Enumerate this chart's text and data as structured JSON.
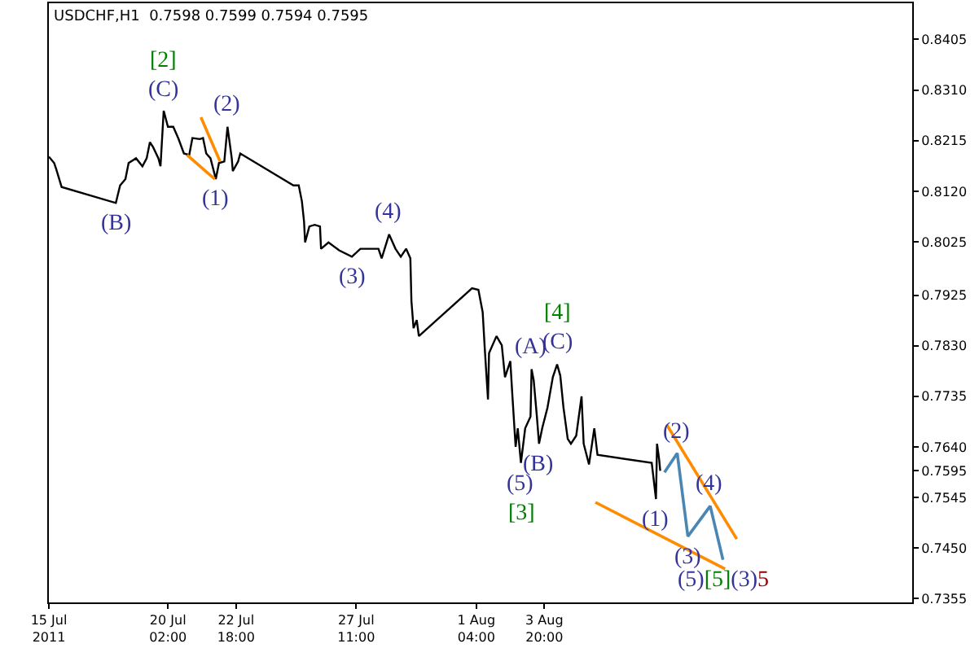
{
  "chart_data": {
    "type": "line",
    "title": "USDCHF,H1  0.7598 0.7599 0.7594 0.7595",
    "series": [
      {
        "color": "#000000",
        "x": [
          "2011-07-15T10:00",
          "2011-07-15T15:00",
          "2011-07-15T17:00",
          "2011-07-15T22:00",
          "2011-07-18T01:00",
          "2011-07-18T05:00",
          "2011-07-18T10:00",
          "2011-07-18T13:00",
          "2011-07-18T20:00",
          "2011-07-19T02:00",
          "2011-07-19T06:00",
          "2011-07-19T09:00",
          "2011-07-19T12:00",
          "2011-07-19T17:00",
          "2011-07-19T19:00",
          "2011-07-19T22:00",
          "2011-07-20T02:00",
          "2011-07-20T07:00",
          "2011-07-20T12:00",
          "2011-07-20T17:00",
          "2011-07-20T22:00",
          "2011-07-21T01:00",
          "2011-07-21T08:00",
          "2011-07-21T11:00",
          "2011-07-21T14:00",
          "2011-07-21T18:00",
          "2011-07-21T23:00",
          "2011-07-22T02:00",
          "2011-07-22T07:00",
          "2011-07-22T10:00",
          "2011-07-22T14:00",
          "2011-07-22T15:00",
          "2011-07-22T20:00",
          "2011-07-22T22:00",
          "2011-07-25T00:00",
          "2011-07-25T05:00",
          "2011-07-25T08:00",
          "2011-07-25T10:00",
          "2011-07-25T11:00",
          "2011-07-25T15:00",
          "2011-07-25T20:00",
          "2011-07-26T01:00",
          "2011-07-26T02:00",
          "2011-07-26T09:00",
          "2011-07-26T19:00",
          "2011-07-27T07:00",
          "2011-07-27T15:00",
          "2011-07-27T22:00",
          "2011-07-28T08:00",
          "2011-07-28T11:00",
          "2011-07-28T18:00",
          "2011-07-29T00:00",
          "2011-07-29T05:00",
          "2011-07-29T10:00",
          "2011-07-29T14:00",
          "2011-07-29T15:00",
          "2011-07-29T17:00",
          "2011-07-29T20:00",
          "2011-07-29T22:00",
          "2011-08-01T00:00",
          "2011-08-01T06:00",
          "2011-08-01T10:00",
          "2011-08-01T12:00",
          "2011-08-01T15:00",
          "2011-08-01T16:00",
          "2011-08-01T23:00",
          "2011-08-02T04:00",
          "2011-08-02T07:00",
          "2011-08-02T12:00",
          "2011-08-02T14:00",
          "2011-08-02T17:00",
          "2011-08-02T19:00",
          "2011-08-02T22:00",
          "2011-08-03T02:00",
          "2011-08-03T07:00",
          "2011-08-03T08:00",
          "2011-08-03T10:00",
          "2011-08-03T13:00",
          "2011-08-03T15:00",
          "2011-08-03T18:00",
          "2011-08-03T23:00",
          "2011-08-04T04:00",
          "2011-08-04T08:00",
          "2011-08-04T11:00",
          "2011-08-04T14:00",
          "2011-08-04T18:00",
          "2011-08-04T21:00",
          "2011-08-05T02:00",
          "2011-08-05T07:00",
          "2011-08-05T09:00",
          "2011-08-05T14:00",
          "2011-08-05T19:00",
          "2011-08-05T22:00",
          "2011-08-08T01:00",
          "2011-08-08T05:00",
          "2011-08-08T06:00",
          "2011-08-08T08:00",
          "2011-08-08T09:00"
        ],
        "values": [
          0.8185,
          0.8173,
          0.8161,
          0.8128,
          0.8098,
          0.8131,
          0.8143,
          0.8173,
          0.8182,
          0.8167,
          0.8182,
          0.8212,
          0.8203,
          0.8182,
          0.8167,
          0.8271,
          0.8241,
          0.8241,
          0.8218,
          0.8191,
          0.8188,
          0.822,
          0.8218,
          0.822,
          0.8191,
          0.8182,
          0.8143,
          0.8173,
          0.8176,
          0.8241,
          0.8182,
          0.8158,
          0.8176,
          0.8191,
          0.8131,
          0.8131,
          0.8101,
          0.8063,
          0.8024,
          0.8054,
          0.8057,
          0.8054,
          0.8012,
          0.8024,
          0.8009,
          0.7997,
          0.8012,
          0.8012,
          0.8012,
          0.7994,
          0.8039,
          0.8012,
          0.7997,
          0.8012,
          0.7994,
          0.7914,
          0.7863,
          0.7878,
          0.7848,
          0.7938,
          0.7935,
          0.7893,
          0.7824,
          0.7729,
          0.7816,
          0.7848,
          0.7831,
          0.7771,
          0.7801,
          0.7735,
          0.764,
          0.7675,
          0.761,
          0.7675,
          0.7697,
          0.7786,
          0.7765,
          0.7697,
          0.7646,
          0.7675,
          0.7714,
          0.7771,
          0.7795,
          0.7774,
          0.7714,
          0.7655,
          0.7646,
          0.7661,
          0.7735,
          0.7646,
          0.7607,
          0.7675,
          0.7625,
          0.761,
          0.7542,
          0.7646,
          0.7616,
          0.7595
        ]
      },
      {
        "color": "#ff8c00",
        "x": [
          "2011-07-21T09:00",
          "2011-07-22T03:00"
        ],
        "values": [
          0.8259,
          0.8176
        ]
      },
      {
        "color": "#ff8c00",
        "x": [
          "2011-07-20T20:00",
          "2011-07-21T22:00"
        ],
        "values": [
          0.8188,
          0.8143
        ]
      },
      {
        "color": "#ff8c00",
        "x": [
          "2011-08-08T15:00",
          "2011-08-11T09:00"
        ],
        "values": [
          0.7682,
          0.7467
        ]
      },
      {
        "color": "#ff8c00",
        "x": [
          "2011-08-05T20:00",
          "2011-08-10T22:00"
        ],
        "values": [
          0.7536,
          0.7411
        ]
      },
      {
        "color": "#4a86b4",
        "x": [
          "2011-08-08T13:00",
          "2011-08-09T01:00",
          "2011-08-09T11:00",
          "2011-08-10T08:00",
          "2011-08-10T20:00"
        ],
        "values": [
          0.7592,
          0.7628,
          0.7472,
          0.7529,
          0.7428
        ]
      }
    ],
    "xlim": [
      "2011-07-15T10:00",
      "2011-08-18T06:00"
    ],
    "ylim": [
      0.7348,
      0.8473
    ],
    "xticks": [
      {
        "value": "2011-07-15T10:00",
        "label": "15 Jul 2011"
      },
      {
        "value": "2011-07-20T02:00",
        "label": "20 Jul 02:00"
      },
      {
        "value": "2011-07-22T18:00",
        "label": "22 Jul 18:00"
      },
      {
        "value": "2011-07-27T11:00",
        "label": "27 Jul 11:00"
      },
      {
        "value": "2011-08-01T04:00",
        "label": "1 Aug 04:00"
      },
      {
        "value": "2011-08-03T20:00",
        "label": "3 Aug 20:00"
      }
    ],
    "yticks": [
      0.8405,
      {
        "value": 0.831,
        "label": "0.8310"
      },
      0.8215,
      {
        "value": 0.812,
        "label": "0.8120"
      },
      0.8025,
      0.7925,
      {
        "value": 0.783,
        "label": "0.7830"
      },
      0.7735,
      {
        "value": 0.764,
        "label": "0.7640"
      },
      0.7595,
      0.7545,
      {
        "value": 0.745,
        "label": "0.7450"
      },
      0.7355
    ],
    "annotations": [
      {
        "text": "(B)",
        "x": "2011-07-18T01:00",
        "y": 0.8098
      },
      {
        "text": "(C)",
        "x": "2011-07-19T22:00",
        "y": 0.8271
      },
      {
        "text": "[2]",
        "x": "2011-07-19T22:00",
        "y": 0.8271
      },
      {
        "text": "(1)",
        "x": "2011-07-21T23:00",
        "y": 0.8143
      },
      {
        "text": "(2)",
        "x": "2011-07-22T10:00",
        "y": 0.8241
      },
      {
        "text": "(3)",
        "x": "2011-07-27T07:00",
        "y": 0.7997
      },
      {
        "text": "(4)",
        "x": "2011-07-28T18:00",
        "y": 0.8039
      },
      {
        "text": "(5)",
        "x": "2011-08-02T22:00",
        "y": 0.761
      },
      {
        "text": "[3]",
        "x": "2011-08-02T22:00",
        "y": 0.761
      },
      {
        "text": "(B)",
        "x": "2011-08-03T15:00",
        "y": 0.7646
      },
      {
        "text": "(A)",
        "x": "2011-08-03T08:00",
        "y": 0.7786
      },
      {
        "text": "(C)",
        "x": "2011-08-04T08:00",
        "y": 0.7795
      },
      {
        "text": "[4]",
        "x": "2011-08-04T08:00",
        "y": 0.7795
      },
      {
        "text": "(1)",
        "x": "2011-08-08T05:00",
        "y": 0.7542
      },
      {
        "text": "(2)",
        "x": "2011-08-09T01:00",
        "y": 0.7628
      },
      {
        "text": "(3)",
        "x": "2011-08-09T11:00",
        "y": 0.7472
      },
      {
        "text": "(4)",
        "x": "2011-08-10T08:00",
        "y": 0.7529
      },
      {
        "text": "(5)[5](3)5",
        "x": "2011-08-10T20:00",
        "y": 0.7428
      }
    ],
    "marker": "none"
  }
}
